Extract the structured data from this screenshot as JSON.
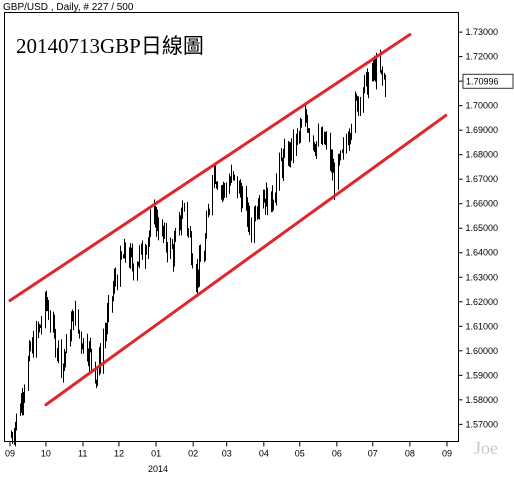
{
  "header": {
    "symbol_line": "GBP/USD , Daily, # 227 / 500"
  },
  "annotation": {
    "title": "20140713GBP日線圖"
  },
  "watermark": {
    "text": "Joe"
  },
  "chart_data": {
    "type": "ohlc",
    "instrument": "GBP/USD",
    "timeframe": "Daily",
    "ylim": [
      1.563,
      1.738
    ],
    "y_ticks": [
      "1.57000",
      "1.58000",
      "1.59000",
      "1.60000",
      "1.61000",
      "1.62000",
      "1.63000",
      "1.64000",
      "1.65000",
      "1.66000",
      "1.67000",
      "1.68000",
      "1.69000",
      "1.70000",
      "1.71000",
      "1.72000",
      "1.73000"
    ],
    "current_price": "1.70996",
    "x_ticks": [
      "09",
      "10",
      "11",
      "12",
      "01",
      "02",
      "03",
      "04",
      "05",
      "06",
      "07",
      "08",
      "09"
    ],
    "year_label": "2014",
    "channel_color": "#e0262c",
    "bar_color": "#000000",
    "price_label_color": "#2222cc",
    "channel_lines": [
      {
        "name": "upper",
        "start": {
          "date": "2013-09-01",
          "price": 1.6205
        },
        "end": {
          "date": "2014-08-01",
          "price": 1.729
        }
      },
      {
        "name": "lower",
        "start": {
          "date": "2013-10-01",
          "price": 1.578
        },
        "end": {
          "date": "2014-08-31",
          "price": 1.696
        }
      }
    ],
    "close_path": [
      [
        "2013-09-02",
        1.565
      ],
      [
        "2013-09-10",
        1.58
      ],
      [
        "2013-09-18",
        1.6
      ],
      [
        "2013-09-26",
        1.61
      ],
      [
        "2013-10-01",
        1.62
      ],
      [
        "2013-10-08",
        1.605
      ],
      [
        "2013-10-15",
        1.595
      ],
      [
        "2013-10-24",
        1.615
      ],
      [
        "2013-10-30",
        1.605
      ],
      [
        "2013-11-06",
        1.6
      ],
      [
        "2013-11-12",
        1.59
      ],
      [
        "2013-11-20",
        1.61
      ],
      [
        "2013-11-28",
        1.63
      ],
      [
        "2013-12-06",
        1.64
      ],
      [
        "2013-12-13",
        1.635
      ],
      [
        "2013-12-20",
        1.64
      ],
      [
        "2013-12-31",
        1.655
      ],
      [
        "2014-01-08",
        1.645
      ],
      [
        "2014-01-15",
        1.64
      ],
      [
        "2014-01-24",
        1.66
      ],
      [
        "2014-02-03",
        1.63
      ],
      [
        "2014-02-10",
        1.64
      ],
      [
        "2014-02-17",
        1.675
      ],
      [
        "2014-02-25",
        1.665
      ],
      [
        "2014-03-05",
        1.67
      ],
      [
        "2014-03-12",
        1.665
      ],
      [
        "2014-03-21",
        1.65
      ],
      [
        "2014-03-28",
        1.665
      ],
      [
        "2014-04-07",
        1.66
      ],
      [
        "2014-04-14",
        1.675
      ],
      [
        "2014-04-21",
        1.68
      ],
      [
        "2014-04-28",
        1.685
      ],
      [
        "2014-05-06",
        1.695
      ],
      [
        "2014-05-13",
        1.685
      ],
      [
        "2014-05-22",
        1.685
      ],
      [
        "2014-05-30",
        1.67
      ],
      [
        "2014-06-06",
        1.68
      ],
      [
        "2014-06-13",
        1.695
      ],
      [
        "2014-06-20",
        1.705
      ],
      [
        "2014-06-27",
        1.71
      ],
      [
        "2014-07-03",
        1.715
      ],
      [
        "2014-07-11",
        1.71
      ]
    ]
  }
}
